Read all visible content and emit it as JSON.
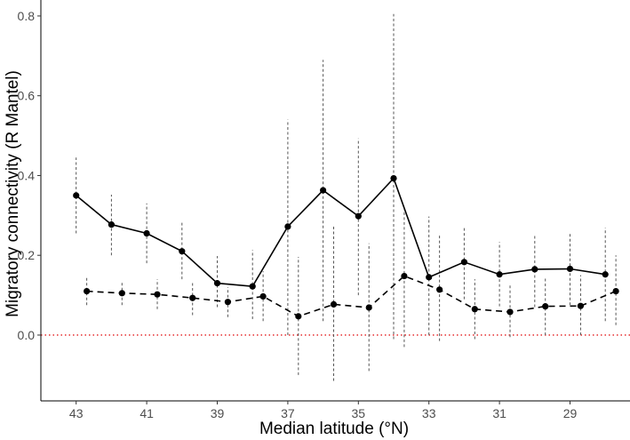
{
  "chart_data": {
    "type": "line",
    "xlabel": "Median latitude (°N)",
    "ylabel": "Migratory connectivity (R Mantel)",
    "xlim": [
      44.0,
      27.3
    ],
    "x_reversed": true,
    "ylim": [
      -0.165,
      0.84
    ],
    "x_ticks": [
      43,
      41,
      39,
      37,
      35,
      33,
      31,
      29
    ],
    "x_tick_labels": [
      "43",
      "41",
      "39",
      "37",
      "35",
      "33",
      "31",
      "29"
    ],
    "y_ticks": [
      0.0,
      0.2,
      0.4,
      0.6,
      0.8
    ],
    "y_tick_labels": [
      "0.0",
      "0.2",
      "0.4",
      "0.6",
      "0.8"
    ],
    "grid": false,
    "reference_line": {
      "y": 0.0,
      "style": "dotted",
      "color": "#e41a1c"
    },
    "series": [
      {
        "line_style": "solid",
        "color": "#000000",
        "points": [
          {
            "x": 43,
            "y": 0.35,
            "lo": 0.255,
            "hi": 0.445
          },
          {
            "x": 42,
            "y": 0.277,
            "lo": 0.2,
            "hi": 0.352
          },
          {
            "x": 41,
            "y": 0.255,
            "lo": 0.18,
            "hi": 0.33
          },
          {
            "x": 40,
            "y": 0.21,
            "lo": 0.14,
            "hi": 0.283
          },
          {
            "x": 39,
            "y": 0.13,
            "lo": 0.07,
            "hi": 0.198
          },
          {
            "x": 38,
            "y": 0.122,
            "lo": 0.04,
            "hi": 0.213
          },
          {
            "x": 37,
            "y": 0.272,
            "lo": 0.0,
            "hi": 0.54
          },
          {
            "x": 36,
            "y": 0.363,
            "lo": 0.035,
            "hi": 0.69
          },
          {
            "x": 35,
            "y": 0.298,
            "lo": 0.1,
            "hi": 0.493
          },
          {
            "x": 34,
            "y": 0.393,
            "lo": -0.01,
            "hi": 0.805
          },
          {
            "x": 33,
            "y": 0.145,
            "lo": 0.0,
            "hi": 0.297
          },
          {
            "x": 32,
            "y": 0.183,
            "lo": 0.09,
            "hi": 0.273
          },
          {
            "x": 31,
            "y": 0.152,
            "lo": 0.072,
            "hi": 0.233
          },
          {
            "x": 30,
            "y": 0.165,
            "lo": 0.07,
            "hi": 0.254
          },
          {
            "x": 29,
            "y": 0.166,
            "lo": 0.075,
            "hi": 0.258
          },
          {
            "x": 28,
            "y": 0.152,
            "lo": 0.035,
            "hi": 0.269
          }
        ]
      },
      {
        "line_style": "dashed",
        "color": "#000000",
        "points": [
          {
            "x": 42.7,
            "y": 0.11,
            "lo": 0.075,
            "hi": 0.148
          },
          {
            "x": 41.7,
            "y": 0.105,
            "lo": 0.075,
            "hi": 0.135
          },
          {
            "x": 40.7,
            "y": 0.102,
            "lo": 0.065,
            "hi": 0.14
          },
          {
            "x": 39.7,
            "y": 0.093,
            "lo": 0.05,
            "hi": 0.135
          },
          {
            "x": 38.7,
            "y": 0.083,
            "lo": 0.045,
            "hi": 0.12
          },
          {
            "x": 37.7,
            "y": 0.097,
            "lo": 0.035,
            "hi": 0.16
          },
          {
            "x": 36.7,
            "y": 0.047,
            "lo": -0.1,
            "hi": 0.196
          },
          {
            "x": 35.7,
            "y": 0.077,
            "lo": -0.115,
            "hi": 0.275
          },
          {
            "x": 34.7,
            "y": 0.069,
            "lo": -0.09,
            "hi": 0.23
          },
          {
            "x": 33.7,
            "y": 0.148,
            "lo": -0.03,
            "hi": 0.315
          },
          {
            "x": 32.7,
            "y": 0.114,
            "lo": -0.015,
            "hi": 0.25
          },
          {
            "x": 31.7,
            "y": 0.065,
            "lo": -0.01,
            "hi": 0.14
          },
          {
            "x": 30.7,
            "y": 0.058,
            "lo": -0.005,
            "hi": 0.125
          },
          {
            "x": 29.7,
            "y": 0.072,
            "lo": 0.0,
            "hi": 0.145
          },
          {
            "x": 28.7,
            "y": 0.073,
            "lo": 0.0,
            "hi": 0.15
          },
          {
            "x": 27.7,
            "y": 0.11,
            "lo": 0.025,
            "hi": 0.2
          }
        ]
      }
    ]
  }
}
